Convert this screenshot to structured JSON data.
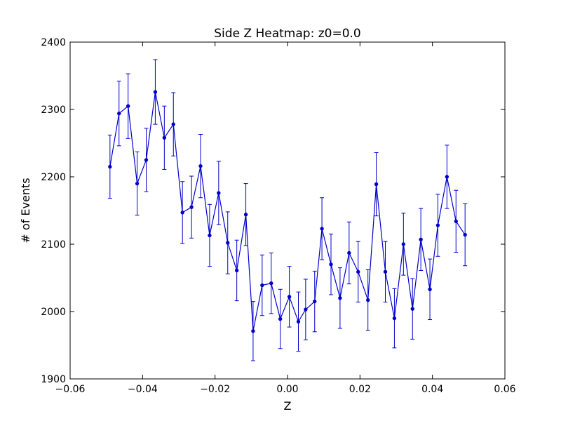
{
  "chart_data": {
    "type": "line",
    "title": "Side Z Heatmap: z0=0.0",
    "xlabel": "Z",
    "ylabel": "# of Events",
    "xlim": [
      -0.06,
      0.06
    ],
    "ylim": [
      1900,
      2400
    ],
    "xticks": [
      -0.06,
      -0.04,
      -0.02,
      0.0,
      0.02,
      0.04,
      0.06
    ],
    "xtick_labels": [
      "−0.06",
      "−0.04",
      "−0.02",
      "0.00",
      "0.02",
      "0.04",
      "0.06"
    ],
    "yticks": [
      1900,
      2000,
      2100,
      2200,
      2300,
      2400
    ],
    "ytick_labels": [
      "1900",
      "2000",
      "2100",
      "2200",
      "2300",
      "2400"
    ],
    "grid": false,
    "line_color": "#0000cc",
    "series": [
      {
        "x": [
          -0.049,
          -0.0465,
          -0.044,
          -0.0415,
          -0.039,
          -0.0365,
          -0.034,
          -0.0315,
          -0.029,
          -0.0265,
          -0.024,
          -0.0215,
          -0.019,
          -0.0165,
          -0.014,
          -0.0115,
          -0.0095,
          -0.007,
          -0.0045,
          -0.002,
          0.0005,
          0.003,
          0.005,
          0.0075,
          0.0095,
          0.012,
          0.0145,
          0.017,
          0.0195,
          0.0222,
          0.0245,
          0.027,
          0.0295,
          0.032,
          0.0345,
          0.0368,
          0.0393,
          0.0415,
          0.044,
          0.0465,
          0.049
        ],
        "y": [
          2215,
          2294,
          2305,
          2190,
          2225,
          2326,
          2258,
          2278,
          2147,
          2155,
          2216,
          2113,
          2176,
          2102,
          2061,
          2144,
          1971,
          2039,
          2042,
          1989,
          2022,
          1985,
          2003,
          2015,
          2123,
          2070,
          2020,
          2087,
          2059,
          2017,
          2189,
          2059,
          1990,
          2100,
          2004,
          2107,
          2033,
          2128,
          2200,
          2134,
          2114
        ],
        "yerr": [
          47,
          48,
          48,
          47,
          47,
          48,
          47,
          47,
          46,
          46,
          47,
          46,
          47,
          46,
          45,
          46,
          44,
          45,
          45,
          44,
          45,
          44,
          45,
          45,
          46,
          45,
          45,
          46,
          45,
          45,
          47,
          45,
          44,
          46,
          45,
          46,
          45,
          46,
          47,
          46,
          46
        ]
      }
    ]
  }
}
